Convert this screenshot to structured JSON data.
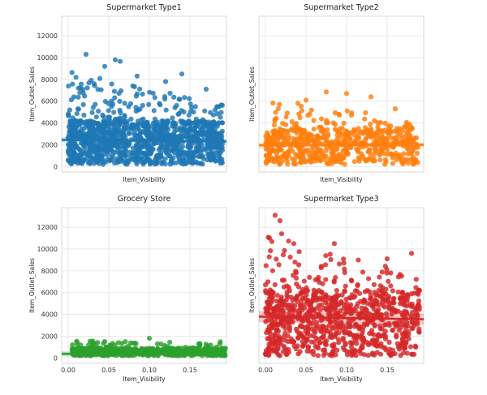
{
  "chart_data": [
    {
      "type": "scatter",
      "title": "Supermarket Type1",
      "xlabel": "Item_Visibility",
      "ylabel": "Item_Outlet_Sales",
      "xlim": [
        -0.008,
        0.195
      ],
      "ylim": [
        -500,
        13800
      ],
      "yticks": [
        "0",
        "2000",
        "4000",
        "6000",
        "8000",
        "10000",
        "12000"
      ],
      "xticks": [],
      "color": "#1f77b4",
      "seed": 11,
      "n_points": 1300,
      "x_range": [
        0.0,
        0.19
      ],
      "y_base_max": 4000,
      "y_mean": 2350,
      "y_tail": 2900,
      "y_max": 10300,
      "x_decay": 0.9,
      "trend": [
        [
          -0.008,
          2450
        ],
        [
          0.195,
          2300
        ]
      ],
      "highlights": [
        [
          0.022,
          10300
        ],
        [
          0.058,
          9800
        ],
        [
          0.064,
          9650
        ],
        [
          0.045,
          9200
        ],
        [
          0.14,
          8500
        ],
        [
          0.085,
          8300
        ],
        [
          0.12,
          7800
        ],
        [
          0.17,
          7100
        ]
      ]
    },
    {
      "type": "scatter",
      "title": "Supermarket Type2",
      "xlabel": "Item_Visibility",
      "ylabel": "Item_Outlet_Sales",
      "xlim": [
        -0.008,
        0.195
      ],
      "ylim": [
        -500,
        13800
      ],
      "yticks": [],
      "xticks": [],
      "color": "#ff7f0e",
      "seed": 29,
      "n_points": 650,
      "x_range": [
        0.0,
        0.19
      ],
      "y_base_max": 3300,
      "y_mean": 1950,
      "y_tail": 2100,
      "y_max": 6900,
      "x_decay": 0.7,
      "trend": [
        [
          -0.008,
          1950
        ],
        [
          0.195,
          2000
        ]
      ],
      "highlights": [
        [
          0.075,
          6850
        ],
        [
          0.1,
          6700
        ],
        [
          0.13,
          6400
        ],
        [
          0.05,
          6100
        ],
        [
          0.04,
          5800
        ],
        [
          0.16,
          5300
        ]
      ]
    },
    {
      "type": "scatter",
      "title": "Grocery Store",
      "xlabel": "Item_Visibility",
      "ylabel": "Item_Outlet_Sales",
      "xlim": [
        -0.008,
        0.195
      ],
      "ylim": [
        -500,
        13800
      ],
      "yticks": [
        "0",
        "2000",
        "4000",
        "6000",
        "8000",
        "10000",
        "12000"
      ],
      "xticks": [
        "0.00",
        "0.05",
        "0.10",
        "0.15"
      ],
      "color": "#2ca02c",
      "seed": 47,
      "n_points": 650,
      "x_range": [
        0.005,
        0.195
      ],
      "y_base_max": 700,
      "y_mean": 330,
      "y_tail": 400,
      "y_max": 1800,
      "x_decay": 0.0,
      "trend": [
        [
          -0.008,
          380
        ],
        [
          0.195,
          350
        ]
      ],
      "highlights": [
        [
          0.1,
          1800
        ],
        [
          0.03,
          1550
        ],
        [
          0.045,
          1500
        ],
        [
          0.08,
          1350
        ]
      ]
    },
    {
      "type": "scatter",
      "title": "Supermarket Type3",
      "xlabel": "Item_Visibility",
      "ylabel": "Item_Outlet_Sales",
      "xlim": [
        -0.008,
        0.195
      ],
      "ylim": [
        -500,
        13800
      ],
      "yticks": [],
      "xticks": [
        "0.00",
        "0.05",
        "0.10",
        "0.15"
      ],
      "color": "#d62728",
      "seed": 73,
      "n_points": 935,
      "x_range": [
        0.0,
        0.19
      ],
      "y_base_max": 6000,
      "y_mean": 3700,
      "y_tail": 3200,
      "y_max": 13100,
      "x_decay": 0.9,
      "trend": [
        [
          -0.008,
          3800
        ],
        [
          0.195,
          3550
        ]
      ],
      "highlights": [
        [
          0.012,
          13100
        ],
        [
          0.018,
          12600
        ],
        [
          0.02,
          11400
        ],
        [
          0.005,
          11000
        ],
        [
          0.035,
          10500
        ],
        [
          0.085,
          10500
        ],
        [
          0.18,
          9600
        ],
        [
          0.15,
          9100
        ]
      ]
    }
  ]
}
